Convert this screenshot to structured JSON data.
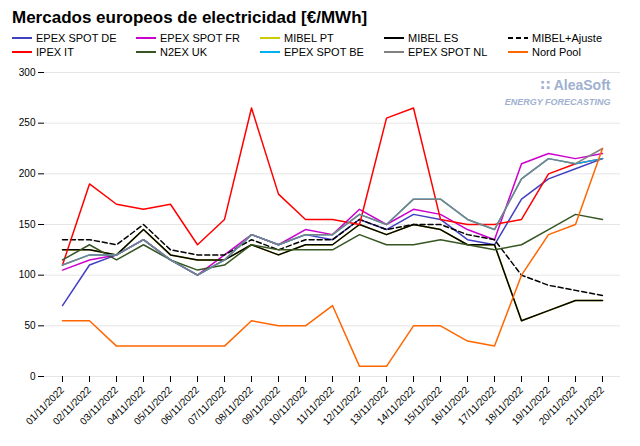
{
  "chart_data": {
    "type": "line",
    "title": "Mercados europeos de electricidad [€/MWh]",
    "categories": [
      "01/11/2022",
      "02/11/2022",
      "03/11/2022",
      "04/11/2022",
      "05/11/2022",
      "06/11/2022",
      "07/11/2022",
      "08/11/2022",
      "09/11/2022",
      "10/11/2022",
      "11/11/2022",
      "12/11/2022",
      "13/11/2022",
      "14/11/2022",
      "15/11/2022",
      "16/11/2022",
      "17/11/2022",
      "18/11/2022",
      "19/11/2022",
      "20/11/2022",
      "21/11/2022"
    ],
    "series": [
      {
        "name": "EPEX SPOT DE",
        "color": "#4040c0",
        "line_style": "solid",
        "values": [
          70,
          110,
          120,
          135,
          115,
          100,
          115,
          140,
          130,
          140,
          135,
          155,
          145,
          160,
          155,
          135,
          130,
          175,
          195,
          205,
          215
        ]
      },
      {
        "name": "EPEX SPOT FR",
        "color": "#cc00cc",
        "line_style": "solid",
        "values": [
          105,
          115,
          120,
          135,
          115,
          100,
          120,
          140,
          130,
          145,
          140,
          165,
          150,
          165,
          160,
          145,
          135,
          210,
          220,
          215,
          220
        ]
      },
      {
        "name": "MIBEL PT",
        "color": "#cccc00",
        "line_style": "solid",
        "values": [
          125,
          125,
          120,
          145,
          120,
          115,
          115,
          130,
          120,
          130,
          130,
          150,
          140,
          150,
          145,
          130,
          130,
          55,
          65,
          75,
          75
        ]
      },
      {
        "name": "MIBEL ES",
        "color": "#000000",
        "line_style": "solid",
        "values": [
          125,
          125,
          120,
          145,
          120,
          115,
          115,
          130,
          120,
          130,
          130,
          150,
          140,
          150,
          145,
          130,
          130,
          55,
          65,
          75,
          75
        ]
      },
      {
        "name": "MIBEL+Ajuste",
        "color": "#000000",
        "line_style": "dashed",
        "values": [
          135,
          135,
          130,
          150,
          125,
          120,
          120,
          135,
          125,
          135,
          135,
          155,
          145,
          150,
          150,
          140,
          135,
          100,
          90,
          85,
          80
        ]
      },
      {
        "name": "IPEX IT",
        "color": "#ff0000",
        "line_style": "solid",
        "values": [
          110,
          190,
          170,
          165,
          170,
          130,
          155,
          265,
          180,
          155,
          155,
          150,
          255,
          265,
          155,
          150,
          150,
          155,
          200,
          210,
          215
        ]
      },
      {
        "name": "N2EX UK",
        "color": "#375623",
        "line_style": "solid",
        "values": [
          115,
          130,
          115,
          130,
          115,
          105,
          110,
          130,
          125,
          125,
          125,
          140,
          130,
          130,
          135,
          130,
          125,
          130,
          145,
          160,
          155
        ]
      },
      {
        "name": "EPEX SPOT BE",
        "color": "#00b0f0",
        "line_style": "solid",
        "values": [
          110,
          120,
          120,
          135,
          115,
          100,
          115,
          140,
          130,
          140,
          140,
          160,
          150,
          175,
          175,
          155,
          145,
          195,
          215,
          210,
          215
        ]
      },
      {
        "name": "EPEX SPOT NL",
        "color": "#808080",
        "line_style": "solid",
        "values": [
          110,
          120,
          120,
          135,
          115,
          100,
          115,
          140,
          130,
          140,
          140,
          160,
          150,
          175,
          175,
          155,
          145,
          195,
          215,
          210,
          225
        ]
      },
      {
        "name": "Nord Pool",
        "color": "#ff6600",
        "line_style": "solid",
        "values": [
          55,
          55,
          30,
          30,
          30,
          30,
          30,
          55,
          50,
          50,
          70,
          10,
          10,
          50,
          50,
          35,
          30,
          100,
          140,
          150,
          225
        ]
      }
    ],
    "ylim": [
      0,
      300
    ],
    "yticks": [
      0,
      50,
      100,
      150,
      200,
      250,
      300
    ],
    "grid": true,
    "legend": "top",
    "annotations": [
      "∷ AleaSoft",
      "ENERGY FORECASTING"
    ]
  }
}
